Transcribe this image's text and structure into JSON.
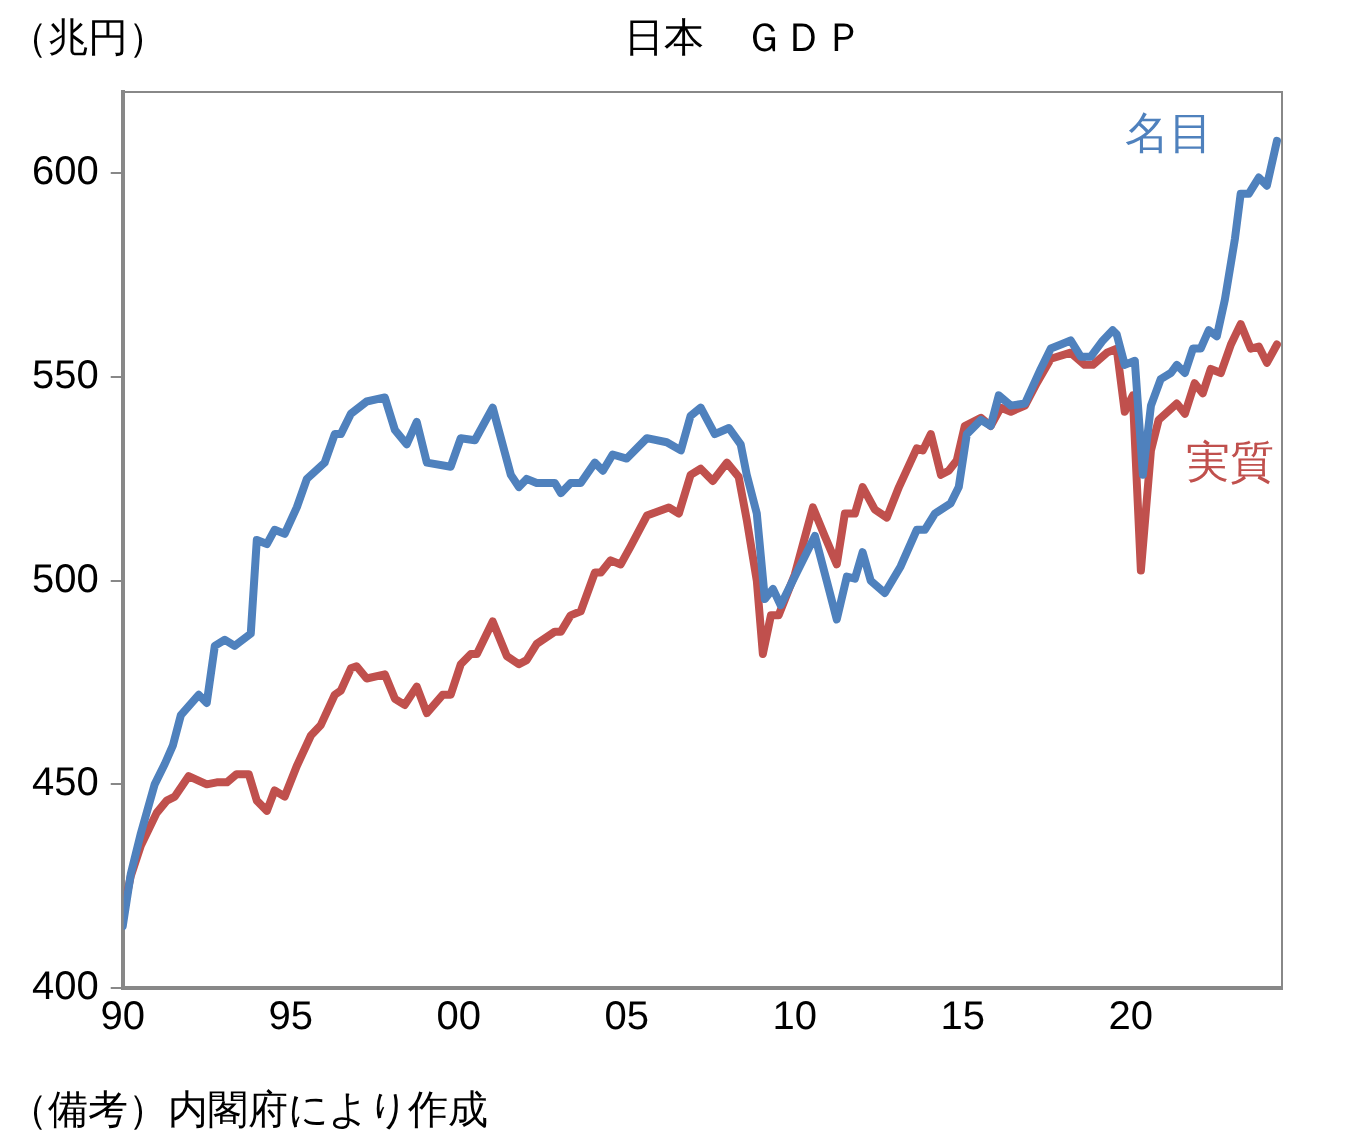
{
  "chart_data": {
    "type": "line",
    "title": "日本　ＧＤＰ",
    "ylabel": "（兆円）",
    "annotations": [
      "（備考）内閣府により作成"
    ],
    "xlim": [
      1990,
      2024.5
    ],
    "xticks": [
      {
        "value": 1990,
        "label": "90"
      },
      {
        "value": 1995,
        "label": "95"
      },
      {
        "value": 2000,
        "label": "00"
      },
      {
        "value": 2005,
        "label": "05"
      },
      {
        "value": 2010,
        "label": "10"
      },
      {
        "value": 2015,
        "label": "15"
      },
      {
        "value": 2020,
        "label": "20"
      }
    ],
    "ylim": [
      400,
      620
    ],
    "yticks": [
      400,
      450,
      500,
      550,
      600
    ],
    "grid": false,
    "legend": false,
    "marker": "none",
    "line_style": "solid",
    "series": [
      {
        "name": "名目",
        "color": "#4f81bd",
        "x": [
          1990.0,
          1990.24,
          1990.54,
          1990.95,
          1991.25,
          1991.49,
          1991.73,
          1992.26,
          1992.5,
          1992.74,
          1993.04,
          1993.33,
          1993.81,
          1993.99,
          1994.29,
          1994.52,
          1994.82,
          1995.18,
          1995.48,
          1996.01,
          1996.31,
          1996.49,
          1996.79,
          1997.26,
          1997.8,
          1998.1,
          1998.45,
          1998.75,
          1999.05,
          1999.76,
          2000.06,
          2000.48,
          2001.01,
          2001.55,
          2001.79,
          2002.02,
          2002.32,
          2002.86,
          2003.04,
          2003.33,
          2003.63,
          2004.05,
          2004.29,
          2004.58,
          2005.0,
          2005.6,
          2006.19,
          2006.61,
          2006.9,
          2007.2,
          2007.62,
          2008.04,
          2008.39,
          2008.57,
          2008.87,
          2009.11,
          2009.35,
          2009.58,
          2010.06,
          2010.6,
          2010.95,
          2011.25,
          2011.55,
          2011.79,
          2012.02,
          2012.26,
          2012.68,
          2013.15,
          2013.63,
          2013.87,
          2014.17,
          2014.64,
          2014.88,
          2015.12,
          2015.54,
          2015.83,
          2016.07,
          2016.43,
          2016.85,
          2017.32,
          2017.62,
          2017.92,
          2018.21,
          2018.51,
          2018.81,
          2019.17,
          2019.46,
          2019.58,
          2019.82,
          2020.12,
          2020.36,
          2020.6,
          2020.89,
          2021.19,
          2021.37,
          2021.61,
          2021.85,
          2022.08,
          2022.32,
          2022.56,
          2022.8,
          2023.1,
          2023.27,
          2023.51,
          2023.81,
          2024.05,
          2024.35
        ],
        "values": [
          415.2,
          428,
          438,
          450,
          455,
          459.5,
          467,
          472,
          470,
          484,
          485.5,
          484,
          487,
          510,
          509,
          512.5,
          511.5,
          518,
          525,
          529,
          536,
          536,
          541,
          544,
          545,
          537,
          533.5,
          539,
          529,
          528,
          535,
          534.5,
          542.5,
          526,
          523,
          525,
          524,
          524,
          521.5,
          524,
          524,
          529,
          527,
          531,
          530,
          535,
          534,
          532,
          540.5,
          542.5,
          536,
          537.5,
          533.5,
          526,
          516.5,
          495.5,
          498,
          494,
          502,
          511,
          500,
          490.5,
          501,
          500.5,
          507,
          500,
          497,
          503.5,
          512.5,
          512.5,
          516.5,
          519,
          523,
          536,
          539.5,
          538,
          545.5,
          543,
          543.5,
          552,
          557,
          558,
          559,
          555,
          555,
          559,
          561.5,
          560.5,
          553,
          554,
          526,
          543,
          549.5,
          551,
          553,
          551,
          557,
          557,
          561.5,
          560,
          569,
          584,
          595,
          595,
          599,
          597,
          608
        ]
      },
      {
        "name": "実質",
        "color": "#c0504d",
        "x": [
          1990.0,
          1990.24,
          1990.54,
          1991.01,
          1991.31,
          1991.55,
          1991.96,
          1992.5,
          1992.8,
          1993.1,
          1993.39,
          1993.75,
          1993.99,
          1994.29,
          1994.52,
          1994.82,
          1995.18,
          1995.6,
          1995.89,
          1996.31,
          1996.49,
          1996.79,
          1996.96,
          1997.26,
          1997.8,
          1998.1,
          1998.39,
          1998.75,
          1999.05,
          1999.52,
          1999.76,
          2000.06,
          2000.36,
          2000.54,
          2001.01,
          2001.43,
          2001.79,
          2002.02,
          2002.32,
          2002.86,
          2003.04,
          2003.33,
          2003.63,
          2004.05,
          2004.23,
          2004.52,
          2004.82,
          2005.12,
          2005.6,
          2006.25,
          2006.55,
          2006.9,
          2007.2,
          2007.56,
          2007.98,
          2008.33,
          2008.57,
          2008.87,
          2009.05,
          2009.29,
          2009.52,
          2010.0,
          2010.54,
          2010.89,
          2011.25,
          2011.49,
          2011.79,
          2012.02,
          2012.38,
          2012.74,
          2013.1,
          2013.63,
          2013.81,
          2014.05,
          2014.35,
          2014.58,
          2014.82,
          2015.06,
          2015.54,
          2015.83,
          2016.13,
          2016.43,
          2016.85,
          2017.2,
          2017.62,
          2018.21,
          2018.63,
          2018.87,
          2019.29,
          2019.58,
          2019.82,
          2020.06,
          2020.3,
          2020.6,
          2020.83,
          2021.37,
          2021.61,
          2021.9,
          2022.14,
          2022.38,
          2022.68,
          2022.98,
          2023.27,
          2023.57,
          2023.81,
          2024.05,
          2024.35
        ],
        "values": [
          418.2,
          427.5,
          435,
          443,
          446,
          447,
          452,
          450,
          450.5,
          450.5,
          452.5,
          452.5,
          446,
          443.5,
          448.5,
          447,
          454.5,
          462,
          464.5,
          472,
          473,
          478.5,
          479,
          476,
          477,
          471,
          469.5,
          474,
          467.5,
          472,
          472,
          479.5,
          482,
          482,
          490,
          481.5,
          479.5,
          480.5,
          484.5,
          487.5,
          487.5,
          491.5,
          492.5,
          502,
          502,
          505,
          504,
          508.5,
          516,
          518,
          516.5,
          526,
          527.5,
          524.5,
          529,
          525.5,
          515,
          500,
          482,
          491.5,
          491.5,
          501.5,
          518,
          511,
          504,
          516.5,
          516.5,
          523,
          517.5,
          515.5,
          523,
          532.5,
          532,
          536,
          526,
          527,
          529.5,
          538,
          540,
          538,
          542.5,
          541.5,
          543,
          548.5,
          554.5,
          556,
          553,
          553,
          556,
          557,
          541.5,
          545.5,
          502.5,
          532,
          539.5,
          543.5,
          541,
          548.5,
          546,
          552,
          551,
          558,
          563,
          557,
          557.5,
          553.5,
          558
        ]
      }
    ]
  }
}
